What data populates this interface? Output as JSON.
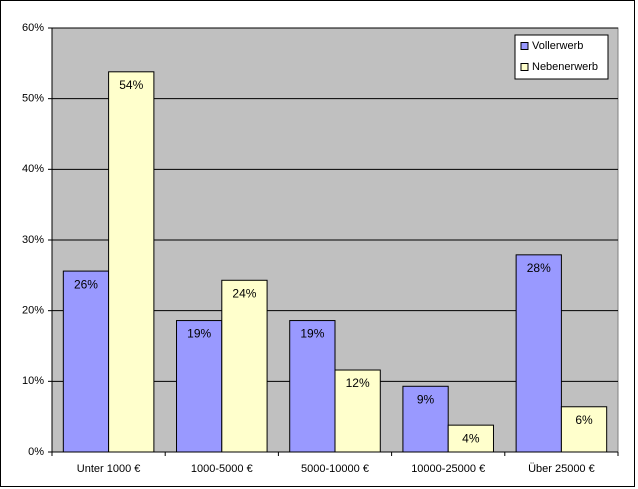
{
  "chart_data": {
    "type": "bar",
    "categories": [
      "Unter 1000 €",
      "1000-5000 €",
      "5000-10000 €",
      "10000-25000 €",
      "Über 25000 €"
    ],
    "series": [
      {
        "name": "Vollerwerb",
        "color": "#9999ff",
        "values": [
          25.6,
          18.6,
          18.6,
          9.3,
          27.9
        ],
        "value_labels": [
          "26%",
          "19%",
          "19%",
          "9%",
          "28%"
        ]
      },
      {
        "name": "Nebenerwerb",
        "color": "#ffffcc",
        "values": [
          53.8,
          24.3,
          11.6,
          3.8,
          6.4
        ],
        "value_labels": [
          "54%",
          "24%",
          "12%",
          "4%",
          "6%"
        ]
      }
    ],
    "ylim": [
      0,
      60
    ],
    "yticks": [
      {
        "value": 0,
        "label": "0%"
      },
      {
        "value": 10,
        "label": "10%"
      },
      {
        "value": 20,
        "label": "20%"
      },
      {
        "value": 30,
        "label": "30%"
      },
      {
        "value": 40,
        "label": "40%"
      },
      {
        "value": 50,
        "label": "50%"
      },
      {
        "value": 60,
        "label": "60%"
      }
    ],
    "grid": true,
    "legend": "upper right",
    "plot_background": "#c0c0c0"
  }
}
